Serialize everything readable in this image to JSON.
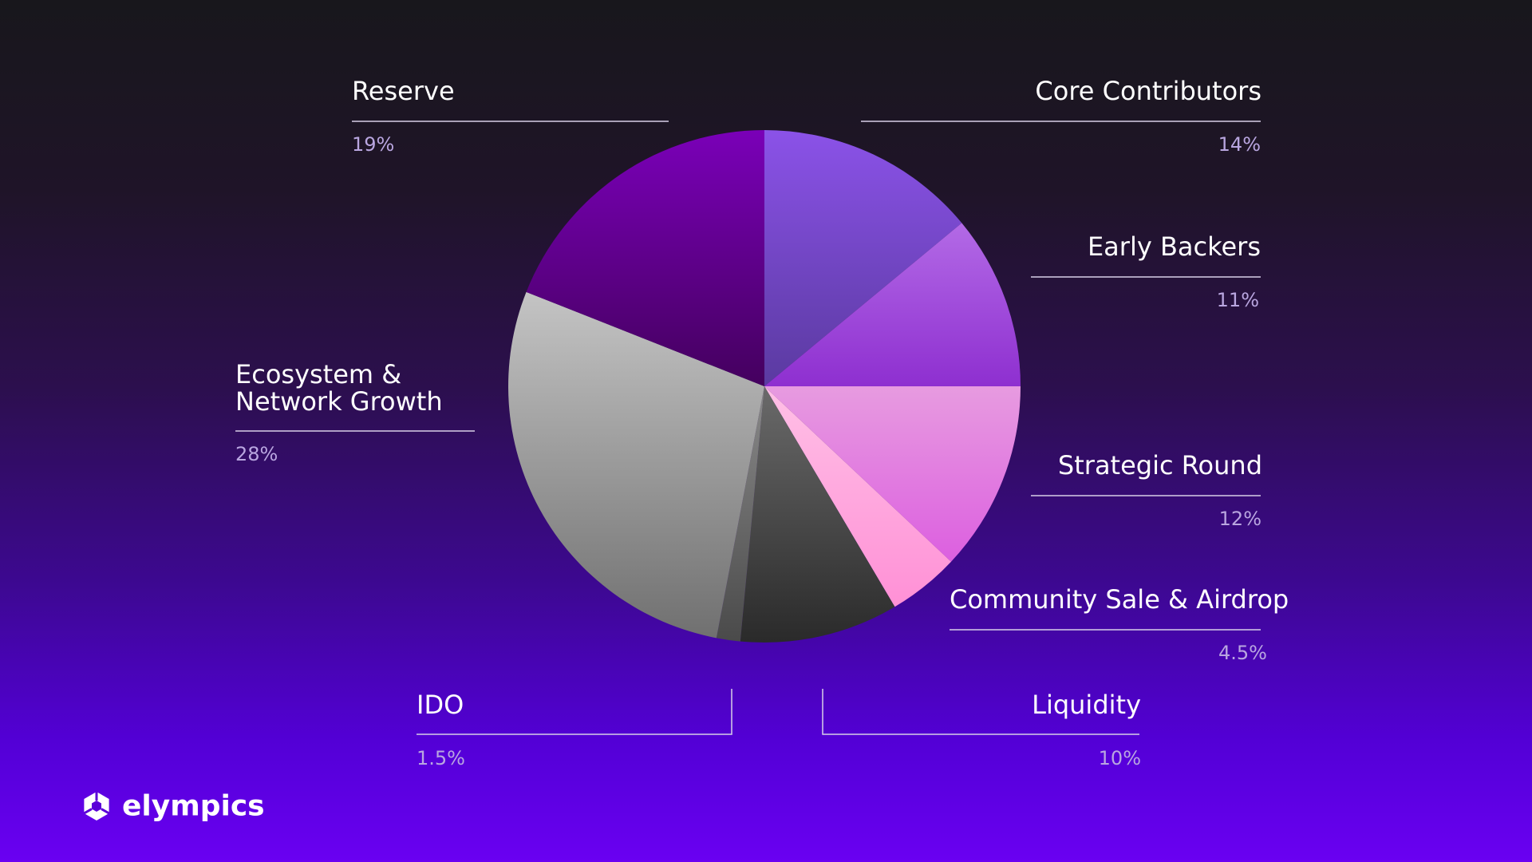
{
  "chart_data": {
    "type": "pie",
    "categories": [
      "Core Contributors",
      "Early Backers",
      "Strategic Round",
      "Community Sale & Airdrop",
      "Liquidity",
      "IDO",
      "Ecosystem & Network Growth",
      "Reserve"
    ],
    "values": [
      14,
      11,
      12,
      4.5,
      10,
      1.5,
      28,
      19
    ],
    "value_labels": [
      "14%",
      "11%",
      "12%",
      "4.5%",
      "10%",
      "1.5%",
      "28%",
      "19%"
    ],
    "colors": [
      [
        "#8b52e8",
        "#5a3aa0"
      ],
      [
        "#b36ae6",
        "#8e2fd0"
      ],
      [
        "#e79be0",
        "#dc5fe0"
      ],
      [
        "#ffc0e6",
        "#ff90d6"
      ],
      [
        "#6a6a6a",
        "#2a2a2a"
      ],
      [
        "#8a8a8a",
        "#4a4a4a"
      ],
      [
        "#c4c4c4",
        "#707070"
      ],
      [
        "#7a00b8",
        "#44005e"
      ]
    ]
  },
  "brand": "elympics"
}
